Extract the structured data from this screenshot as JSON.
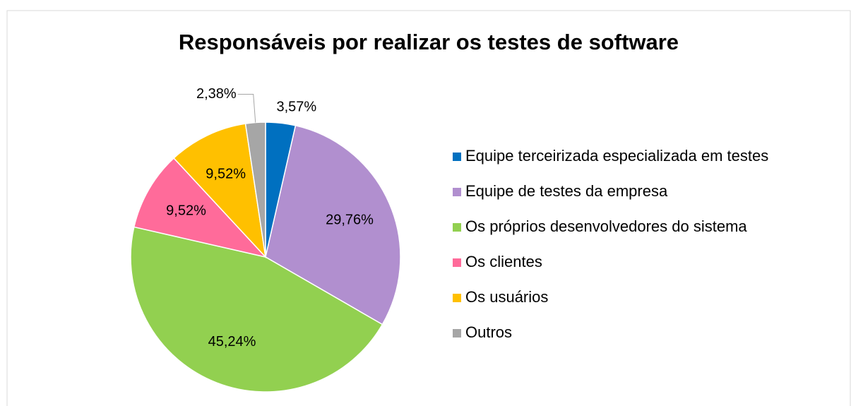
{
  "chart_data": {
    "type": "pie",
    "title": "Responsáveis por realizar os testes de software",
    "categories": [
      "Equipe terceirizada especializada em testes",
      "Equipe de testes da empresa",
      "Os próprios desenvolvedores do sistema",
      "Os clientes",
      "Os usuários",
      "Outros"
    ],
    "values": [
      3.57,
      29.76,
      45.24,
      9.52,
      9.52,
      2.38
    ],
    "value_labels": [
      "3,57%",
      "29,76%",
      "45,24%",
      "9,52%",
      "9,52%",
      "2,38%"
    ],
    "colors": [
      "#0070c0",
      "#b18fcf",
      "#92d050",
      "#ff6b9a",
      "#ffc000",
      "#a6a6a6"
    ],
    "legend": "right"
  }
}
